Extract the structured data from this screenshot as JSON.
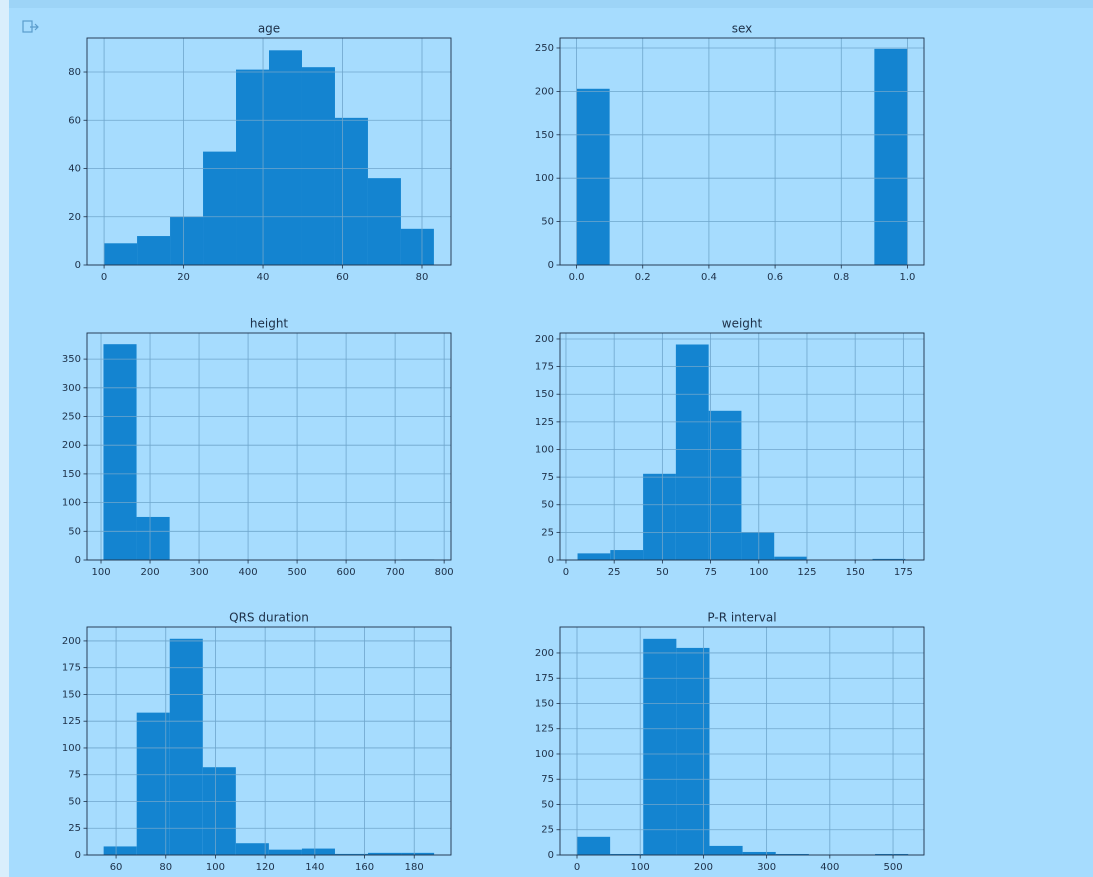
{
  "chart_data": [
    {
      "type": "histogram",
      "title": "age",
      "color": "#1484d0",
      "grid": true,
      "bins": [
        0,
        8.3,
        16.6,
        24.9,
        33.2,
        41.5,
        49.8,
        58.1,
        66.4,
        74.7,
        83
      ],
      "values": [
        9,
        12,
        20,
        47,
        81,
        89,
        82,
        61,
        36,
        15
      ],
      "xlim": [
        -4.3,
        87.3
      ],
      "xticks": [
        0,
        20,
        40,
        60,
        80
      ],
      "ylim": [
        0,
        94.1
      ],
      "yticks": [
        0,
        20,
        40,
        60,
        80
      ]
    },
    {
      "type": "histogram",
      "title": "sex",
      "color": "#1484d0",
      "grid": true,
      "bins": [
        0,
        0.1,
        0.2,
        0.3,
        0.4,
        0.5,
        0.6,
        0.7,
        0.8,
        0.9,
        1
      ],
      "values": [
        203,
        0,
        0,
        0,
        0,
        0,
        0,
        0,
        0,
        249
      ],
      "xlim": [
        -0.05,
        1.05
      ],
      "xticks": [
        {
          "value": 0,
          "label": "0.0"
        },
        0.2,
        0.4,
        0.6,
        0.8,
        {
          "value": 1,
          "label": "1.0"
        }
      ],
      "ylim": [
        0,
        261.5
      ],
      "yticks": [
        0,
        50,
        100,
        150,
        200,
        250
      ]
    },
    {
      "type": "histogram",
      "title": "height",
      "color": "#1484d0",
      "grid": true,
      "bins": [
        105,
        172.5,
        240,
        307.5,
        375,
        442.5,
        510,
        577.5,
        645,
        712.5,
        780
      ],
      "values": [
        376,
        75,
        0,
        0,
        0,
        0,
        0,
        0,
        0,
        1
      ],
      "xlim": [
        71.4,
        814
      ],
      "xticks": [
        100,
        200,
        300,
        400,
        500,
        600,
        700,
        800
      ],
      "ylim": [
        0,
        395.5
      ],
      "yticks": [
        0,
        50,
        100,
        150,
        200,
        250,
        300,
        350
      ]
    },
    {
      "type": "histogram",
      "title": "weight",
      "color": "#1484d0",
      "grid": true,
      "bins": [
        6,
        23,
        40,
        57,
        74,
        91,
        108,
        125,
        142,
        159,
        176
      ],
      "values": [
        6,
        9,
        78,
        195,
        135,
        25,
        3,
        0,
        0,
        1
      ],
      "xlim": [
        -3.1,
        185.7
      ],
      "xticks": [
        0,
        25,
        50,
        75,
        100,
        125,
        150,
        175
      ],
      "ylim": [
        0,
        205.4
      ],
      "yticks": [
        0,
        25,
        50,
        75,
        100,
        125,
        150,
        175,
        200
      ]
    },
    {
      "type": "histogram",
      "title": "QRS duration",
      "color": "#1484d0",
      "grid": true,
      "bins": [
        55,
        68.3,
        81.6,
        94.9,
        108.2,
        121.5,
        134.8,
        148.1,
        161.4,
        174.7,
        188
      ],
      "values": [
        8,
        133,
        202,
        82,
        11,
        5,
        6,
        1,
        2,
        2
      ],
      "xlim": [
        48.3,
        194.8
      ],
      "xticks": [
        60,
        80,
        100,
        120,
        140,
        160,
        180
      ],
      "ylim": [
        0,
        213
      ],
      "yticks": [
        0,
        25,
        50,
        75,
        100,
        125,
        150,
        175,
        200
      ]
    },
    {
      "type": "histogram",
      "title": "P-R interval",
      "color": "#1484d0",
      "grid": true,
      "bins": [
        0,
        52.4,
        104.8,
        157.2,
        209.6,
        262,
        314.4,
        366.8,
        419.2,
        471.6,
        524
      ],
      "values": [
        18,
        1,
        214,
        205,
        9,
        3,
        1,
        0,
        0,
        1
      ],
      "xlim": [
        -26.9,
        549
      ],
      "xticks": [
        0,
        100,
        200,
        300,
        400,
        500
      ],
      "ylim": [
        0,
        225.7
      ],
      "yticks": [
        0,
        25,
        50,
        75,
        100,
        125,
        150,
        175,
        200
      ]
    }
  ]
}
